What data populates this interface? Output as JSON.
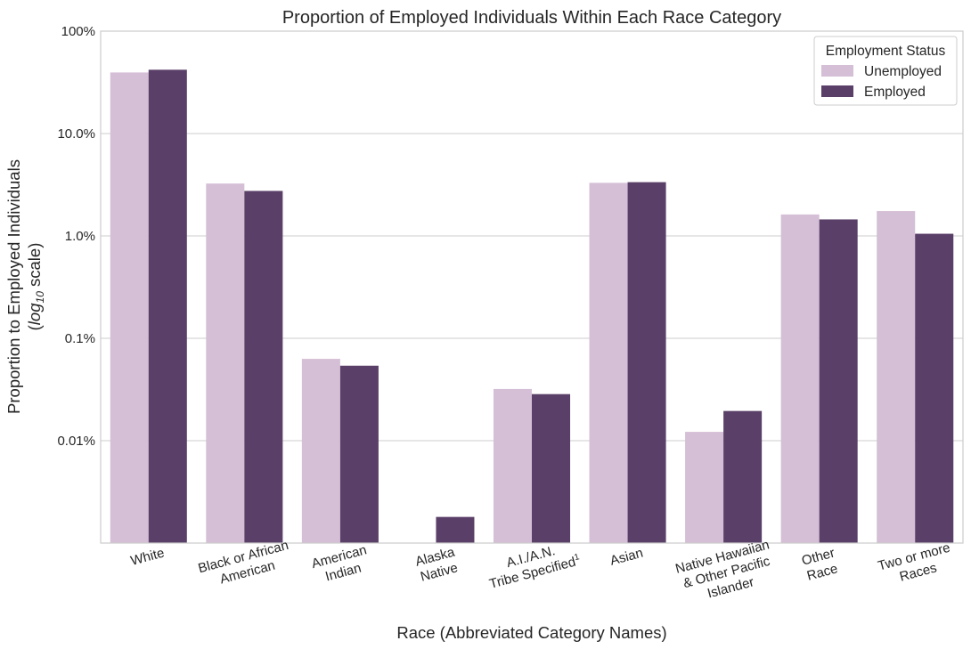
{
  "chart_data": {
    "type": "bar",
    "title": "Proportion of Employed Individuals Within Each Race Category",
    "xlabel": "Race (Abbreviated Category Names)",
    "ylabel_line1": "Proportion to Employed Individuals",
    "ylabel_line2_open": "(",
    "ylabel_line2_log": "log",
    "ylabel_line2_sub": "10",
    "ylabel_line2_close": " scale)",
    "yscale": "log10",
    "ylim": [
      0.001,
      100
    ],
    "yticks": [
      {
        "value": 100,
        "label": "100%"
      },
      {
        "value": 10,
        "label": "10.0%"
      },
      {
        "value": 1,
        "label": "1.0%"
      },
      {
        "value": 0.1,
        "label": "0.1%"
      },
      {
        "value": 0.01,
        "label": "0.01%"
      }
    ],
    "grid": true,
    "legend": {
      "title": "Employment Status",
      "placement": "top-right"
    },
    "categories": [
      {
        "lines": [
          "White"
        ]
      },
      {
        "lines": [
          "Black or African",
          "American"
        ]
      },
      {
        "lines": [
          "American",
          "Indian"
        ]
      },
      {
        "lines": [
          "Alaska",
          "Native"
        ]
      },
      {
        "lines": [
          "A.I./A.N.",
          "Tribe Specified"
        ],
        "superscript": "1"
      },
      {
        "lines": [
          "Asian"
        ]
      },
      {
        "lines": [
          "Native Hawaiian",
          "& Other Pacific",
          "Islander"
        ]
      },
      {
        "lines": [
          "Other",
          "Race"
        ]
      },
      {
        "lines": [
          "Two or more",
          "Races"
        ]
      }
    ],
    "series": [
      {
        "name": "Unemployed",
        "color": "#d5bfd6",
        "values": [
          39.5,
          3.25,
          0.063,
          null,
          0.032,
          3.3,
          0.0122,
          1.62,
          1.75
        ]
      },
      {
        "name": "Employed",
        "color": "#5a3f68",
        "values": [
          42.0,
          2.75,
          0.054,
          0.0018,
          0.0285,
          3.35,
          0.0195,
          1.45,
          1.05
        ]
      }
    ]
  }
}
